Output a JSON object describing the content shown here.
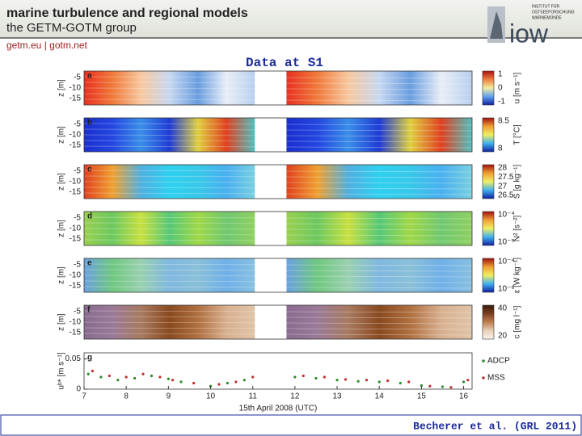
{
  "header": {
    "title": "marine turbulence and regional models",
    "subtitle": "the GETM-GOTM group",
    "links": "getm.eu | gotm.net",
    "logo_text": "iow",
    "institute": [
      "INSTITUT FÜR",
      "OSTSEEFORSCHUNG",
      "WARNEMÜNDE"
    ]
  },
  "slide_title": "Data at S1",
  "figure": {
    "panels": [
      {
        "letter": "a",
        "ylabel": "z [m]",
        "yticks": [
          "-5",
          "-10",
          "-15"
        ],
        "colorbar_label": "u [m s⁻¹]",
        "colorbar_ticks": [
          "1",
          "0",
          "-1"
        ]
      },
      {
        "letter": "b",
        "ylabel": "z [m]",
        "yticks": [
          "-5",
          "-10",
          "-15"
        ],
        "colorbar_label": "T [°C]",
        "colorbar_ticks": [
          "8.5",
          "8"
        ]
      },
      {
        "letter": "c",
        "ylabel": "z [m]",
        "yticks": [
          "-5",
          "-10",
          "-15"
        ],
        "colorbar_label": "S [g kg⁻¹]",
        "colorbar_ticks": [
          "28",
          "27.5",
          "27",
          "26.5"
        ]
      },
      {
        "letter": "d",
        "ylabel": "z [m]",
        "yticks": [
          "-5",
          "-10",
          "-15"
        ],
        "colorbar_label": "N² [s⁻²]",
        "colorbar_ticks": [
          "10⁻⁴",
          "10⁻⁵"
        ]
      },
      {
        "letter": "e",
        "ylabel": "z [m]",
        "yticks": [
          "-5",
          "-10",
          "-15"
        ],
        "colorbar_label": "ε [W kg⁻¹]",
        "colorbar_ticks": [
          "10⁻⁴",
          "10⁻⁶"
        ]
      },
      {
        "letter": "f",
        "ylabel": "z [m]",
        "yticks": [
          "-5",
          "-10",
          "-15"
        ],
        "colorbar_label": "c [mg l⁻¹]",
        "colorbar_ticks": [
          "40",
          "20"
        ]
      }
    ],
    "panel_g": {
      "letter": "g",
      "ylabel": "uᵇ* [m s⁻¹]",
      "ylim": [
        0,
        0.06
      ],
      "yticks": [
        0.05,
        0
      ],
      "series": [
        {
          "name": "ADCP",
          "color": "#2e8b2e",
          "x": [
            7.1,
            7.4,
            7.8,
            8.2,
            8.6,
            9.0,
            9.3,
            10.0,
            10.4,
            10.8,
            12.0,
            12.5,
            13.0,
            13.5,
            14.0,
            14.5,
            15.0,
            15.5,
            16.0
          ],
          "values": [
            0.025,
            0.02,
            0.015,
            0.018,
            0.022,
            0.017,
            0.012,
            0.005,
            0.01,
            0.015,
            0.02,
            0.018,
            0.015,
            0.013,
            0.012,
            0.01,
            0.006,
            0.004,
            0.012
          ]
        },
        {
          "name": "MSS",
          "color": "#c0302e",
          "x": [
            7.2,
            7.6,
            8.0,
            8.4,
            8.8,
            9.1,
            9.6,
            10.2,
            10.6,
            11.0,
            12.2,
            12.7,
            13.2,
            13.7,
            14.2,
            14.7,
            15.2,
            15.7,
            16.1
          ],
          "values": [
            0.03,
            0.022,
            0.02,
            0.025,
            0.02,
            0.015,
            0.01,
            0.008,
            0.012,
            0.02,
            0.022,
            0.02,
            0.016,
            0.015,
            0.014,
            0.012,
            0.005,
            0.003,
            0.015
          ]
        }
      ]
    },
    "x_axis": {
      "xlim": [
        7,
        16.2
      ],
      "xticks": [
        7,
        8,
        9,
        10,
        11,
        12,
        13,
        14,
        15,
        16
      ],
      "label": "15th April 2008 (UTC)"
    }
  },
  "footer": {
    "citation": "Becherer et al. (GRL 2011)"
  }
}
